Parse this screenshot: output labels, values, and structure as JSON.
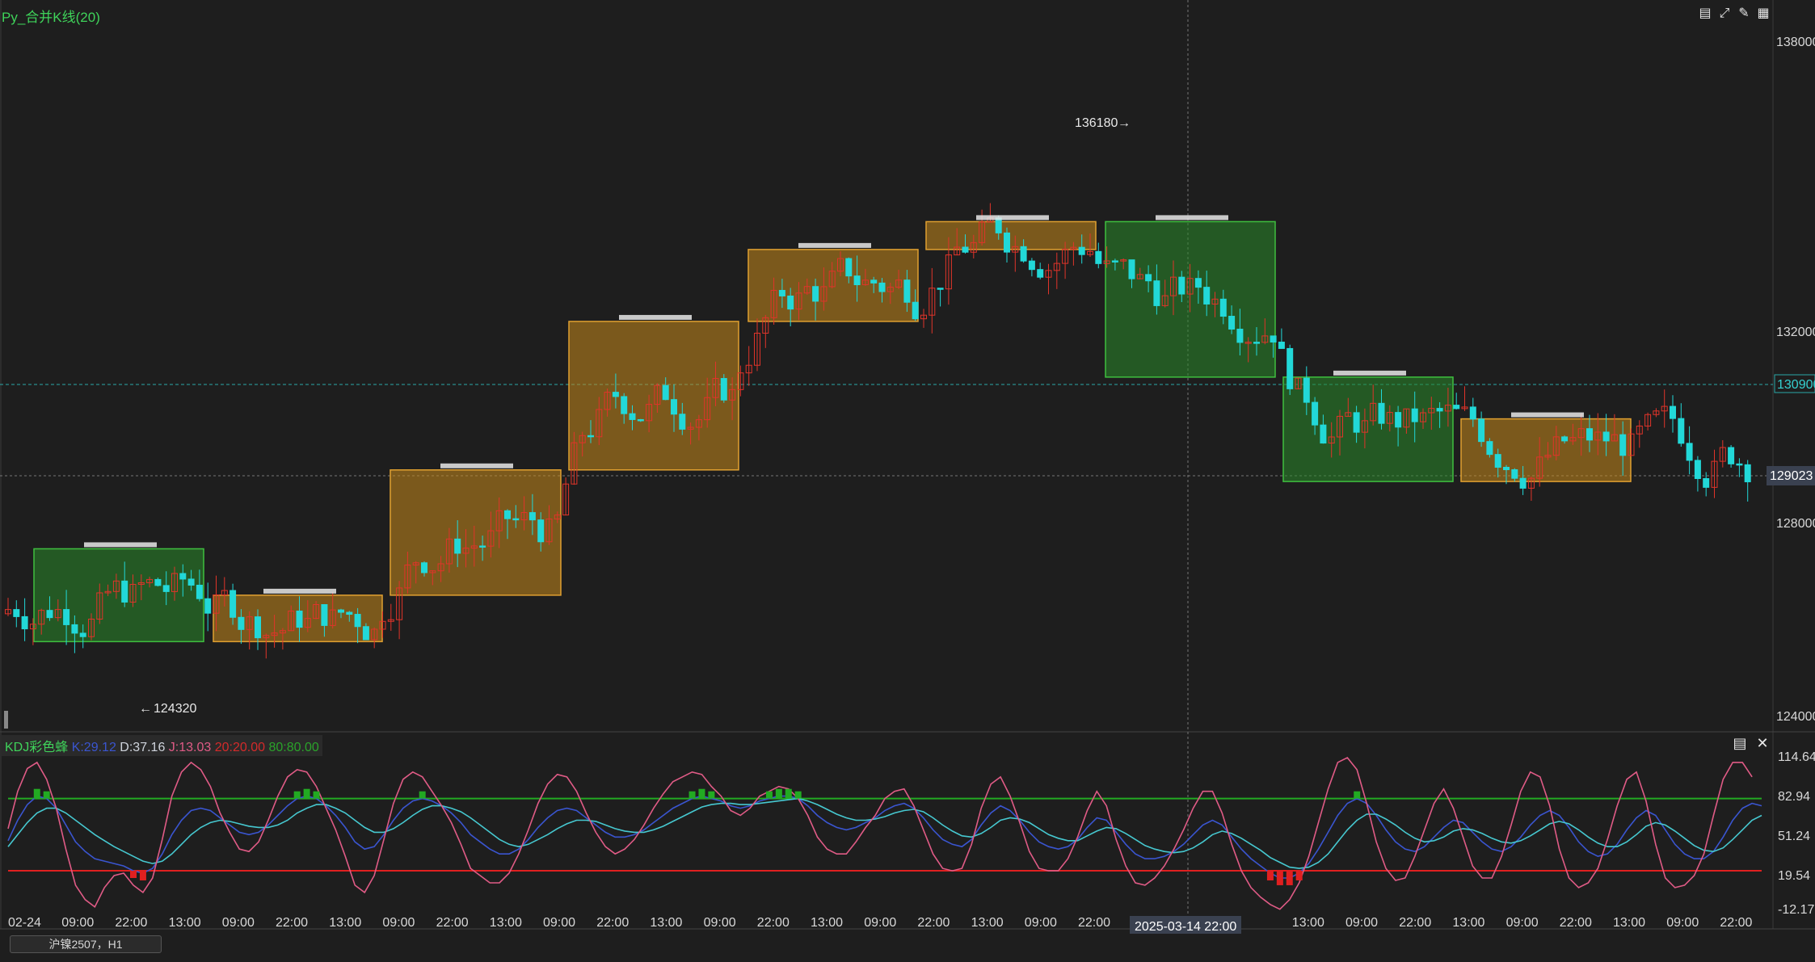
{
  "window": {
    "title": "Py_合并K线(20)",
    "toolbar_icons": [
      "bar-chart-icon",
      "fullscreen-icon",
      "edit-icon",
      "candlestick-icon"
    ]
  },
  "kdj_legend": {
    "name": "KDJ彩色蜂",
    "k": "K:29.12",
    "d": "D:37.16",
    "j": "J:13.03",
    "low": "20:20.00",
    "high": "80:80.00"
  },
  "symbol_tab": "沪镍2507，H1",
  "price_axis": {
    "ticks": [
      "138000",
      "132000",
      "128000",
      "124000"
    ],
    "last_price_label": "130900",
    "crosshair_price_label": "129023"
  },
  "kdj_axis": {
    "ticks": [
      "114.64",
      "82.94",
      "51.24",
      "19.54",
      "-12.17"
    ]
  },
  "time_axis": {
    "labels": [
      "02-24",
      "09:00",
      "22:00",
      "13:00",
      "09:00",
      "22:00",
      "13:00",
      "09:00",
      "22:00",
      "13:00",
      "09:00",
      "22:00",
      "13:00",
      "09:00",
      "22:00",
      "13:00",
      "09:00",
      "22:00",
      "13:00",
      "09:00",
      "22:00",
      "13:00",
      "09:00",
      "22:00",
      "13:00",
      "09:00",
      "22:00",
      "13:00",
      "09:00",
      "22:00",
      "13:00",
      "09:00",
      "22:00"
    ],
    "crosshair_label": "2025-03-14  22:00"
  },
  "annotations": {
    "high_marker": "136180",
    "low_marker": "124320"
  },
  "colors": {
    "up": "#e0342a",
    "down": "#22d8d8",
    "box_orange": "#c88a1c",
    "box_green": "#2a8a2a",
    "k_line": "#3a55d0",
    "d_line": "#46c8d0",
    "j_line": "#e05b86",
    "line_20": "#e02020",
    "line_80": "#22aa22"
  },
  "chart_data": [
    {
      "type": "candlestick",
      "ylim": [
        123700,
        138600
      ],
      "merged_boxes": [
        {
          "color": "green",
          "low": 125400,
          "high": 127400
        },
        {
          "color": "orange",
          "low": 125400,
          "high": 126400
        },
        {
          "color": "orange",
          "low": 126400,
          "high": 129100
        },
        {
          "color": "orange",
          "low": 129100,
          "high": 132300
        },
        {
          "color": "orange",
          "low": 132300,
          "high": 133850
        },
        {
          "color": "orange",
          "low": 133850,
          "high": 134450
        },
        {
          "color": "green",
          "low": 131100,
          "high": 134450
        },
        {
          "color": "green",
          "low": 128850,
          "high": 131100
        },
        {
          "color": "orange",
          "low": 128850,
          "high": 130200
        }
      ],
      "high_marker": 136180,
      "low_marker": 124320,
      "last_price": 130900,
      "crosshair_price": 129023
    },
    {
      "type": "line",
      "ylim": [
        -12.17,
        114.64
      ],
      "levels": [
        20,
        80
      ],
      "series": [
        {
          "name": "K",
          "values": [
            45,
            62,
            75,
            82,
            80,
            72,
            58,
            44,
            36,
            30,
            28,
            26,
            24,
            20,
            18,
            22,
            34,
            50,
            62,
            70,
            72,
            70,
            64,
            58,
            52,
            50,
            52,
            58,
            66,
            74,
            80,
            82,
            80,
            74,
            66,
            56,
            44,
            38,
            40,
            50,
            62,
            72,
            78,
            80,
            78,
            74,
            68,
            60,
            50,
            44,
            38,
            34,
            34,
            38,
            46,
            56,
            64,
            70,
            72,
            70,
            64,
            58,
            52,
            48,
            48,
            50,
            54,
            60,
            66,
            72,
            76,
            80,
            82,
            80,
            78,
            74,
            72,
            74,
            78,
            80,
            82,
            82,
            80,
            74,
            66,
            60,
            56,
            54,
            56,
            60,
            64,
            70,
            74,
            76,
            72,
            64,
            54,
            46,
            42,
            40,
            46,
            58,
            68,
            74,
            70,
            62,
            52,
            44,
            40,
            38,
            40,
            46,
            56,
            64,
            62,
            52,
            42,
            34,
            30,
            30,
            32,
            36,
            42,
            50,
            58,
            62,
            58,
            48,
            38,
            30,
            24,
            18,
            14,
            14,
            18,
            26,
            38,
            52,
            66,
            76,
            80,
            76,
            66,
            54,
            44,
            38,
            36,
            40,
            48,
            56,
            62,
            60,
            52,
            44,
            38,
            36,
            40,
            48,
            58,
            66,
            70,
            66,
            56,
            44,
            36,
            32,
            34,
            42,
            54,
            64,
            70,
            66,
            54,
            42,
            34,
            30,
            30,
            36,
            48,
            62,
            72,
            76,
            74
          ]
        },
        {
          "name": "D",
          "values": [
            40,
            50,
            60,
            68,
            72,
            72,
            68,
            62,
            56,
            50,
            45,
            40,
            36,
            32,
            28,
            26,
            28,
            34,
            42,
            50,
            56,
            60,
            62,
            61,
            59,
            57,
            56,
            56,
            58,
            62,
            68,
            72,
            75,
            75,
            72,
            68,
            62,
            56,
            52,
            52,
            55,
            60,
            66,
            71,
            74,
            74,
            72,
            69,
            64,
            58,
            52,
            46,
            42,
            40,
            42,
            46,
            50,
            55,
            59,
            62,
            62,
            61,
            58,
            55,
            53,
            52,
            52,
            54,
            57,
            61,
            65,
            69,
            73,
            75,
            76,
            76,
            75,
            75,
            76,
            77,
            78,
            79,
            80,
            78,
            75,
            71,
            67,
            64,
            62,
            62,
            63,
            65,
            68,
            70,
            71,
            69,
            64,
            58,
            53,
            49,
            48,
            51,
            56,
            62,
            64,
            63,
            60,
            55,
            50,
            47,
            45,
            45,
            49,
            53,
            56,
            55,
            51,
            46,
            41,
            38,
            36,
            35,
            36,
            39,
            44,
            50,
            53,
            51,
            47,
            42,
            37,
            31,
            27,
            23,
            22,
            23,
            27,
            34,
            44,
            54,
            62,
            67,
            67,
            63,
            58,
            52,
            47,
            44,
            45,
            48,
            53,
            55,
            54,
            51,
            47,
            44,
            43,
            45,
            49,
            54,
            59,
            61,
            59,
            54,
            48,
            43,
            40,
            40,
            44,
            50,
            57,
            60,
            58,
            53,
            47,
            41,
            37,
            36,
            39,
            46,
            54,
            62,
            66
          ]
        },
        {
          "name": "J",
          "values": [
            55,
            86,
            105,
            110,
            96,
            72,
            38,
            8,
            -4,
            -10,
            6,
            16,
            18,
            8,
            2,
            14,
            46,
            82,
            102,
            110,
            104,
            90,
            68,
            52,
            38,
            36,
            44,
            62,
            82,
            98,
            104,
            102,
            90,
            72,
            54,
            32,
            8,
            2,
            16,
            46,
            76,
            96,
            102,
            98,
            86,
            74,
            60,
            42,
            22,
            16,
            10,
            10,
            18,
            34,
            54,
            76,
            92,
            100,
            98,
            86,
            68,
            52,
            40,
            34,
            38,
            46,
            58,
            72,
            84,
            94,
            98,
            102,
            100,
            90,
            82,
            70,
            66,
            72,
            82,
            86,
            90,
            88,
            80,
            66,
            48,
            38,
            34,
            34,
            44,
            56,
            66,
            80,
            86,
            88,
            74,
            54,
            34,
            22,
            20,
            22,
            42,
            72,
            92,
            98,
            82,
            60,
            36,
            22,
            20,
            20,
            30,
            48,
            70,
            86,
            74,
            46,
            24,
            10,
            8,
            14,
            24,
            38,
            54,
            72,
            86,
            86,
            68,
            42,
            20,
            6,
            -2,
            -8,
            -12,
            -4,
            10,
            32,
            60,
            88,
            110,
            114,
            104,
            76,
            44,
            22,
            12,
            14,
            32,
            54,
            76,
            88,
            72,
            48,
            24,
            14,
            14,
            32,
            58,
            86,
            102,
            98,
            74,
            38,
            14,
            6,
            10,
            22,
            46,
            74,
            96,
            102,
            78,
            42,
            14,
            6,
            8,
            16,
            34,
            66,
            96,
            110,
            110,
            98
          ]
        }
      ]
    }
  ]
}
